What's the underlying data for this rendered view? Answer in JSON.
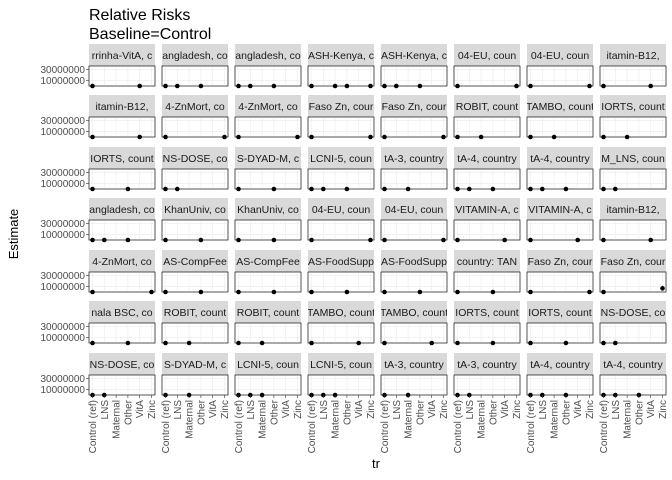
{
  "chart_data": {
    "type": "scatter",
    "title_lines": [
      "Relative Risks",
      "Baseline=Control"
    ],
    "xlabel": "tr",
    "ylabel": "Estimate",
    "categories": [
      "Control (ref)",
      "LNS",
      "Maternal",
      "Other",
      "VitA",
      "Zinc"
    ],
    "yticks": [
      10000000,
      30000000
    ],
    "ytick_labels": [
      "10000000",
      "30000000"
    ],
    "ylim": [
      0,
      36000000
    ],
    "grid": true,
    "legend": "none",
    "point_color": "#000000",
    "panel_bg": "#ffffff",
    "grid_color": "#ebebeb",
    "strip_bg": "#d9d9d9",
    "ncol": 8,
    "nrow": 7,
    "panels": [
      {
        "label": "rrinha-VitA, c",
        "points": [
          {
            "x": "Control (ref)",
            "y": 1
          },
          {
            "x": "VitA",
            "y": 1
          }
        ]
      },
      {
        "label": "angladesh, co",
        "points": [
          {
            "x": "Control (ref)",
            "y": 1
          },
          {
            "x": "LNS",
            "y": 1
          },
          {
            "x": "Other",
            "y": 1
          }
        ]
      },
      {
        "label": "angladesh, co",
        "points": [
          {
            "x": "Control (ref)",
            "y": 1
          },
          {
            "x": "LNS",
            "y": 1
          },
          {
            "x": "Other",
            "y": 1
          }
        ]
      },
      {
        "label": "ASH-Kenya, c",
        "points": [
          {
            "x": "Control (ref)",
            "y": 1
          },
          {
            "x": "Maternal",
            "y": 1
          },
          {
            "x": "Other",
            "y": 1
          },
          {
            "x": "Zinc",
            "y": 1
          }
        ]
      },
      {
        "label": "ASH-Kenya, c",
        "points": [
          {
            "x": "Control (ref)",
            "y": 1
          },
          {
            "x": "LNS",
            "y": 1
          },
          {
            "x": "Other",
            "y": 1
          }
        ]
      },
      {
        "label": "04-EU, coun",
        "points": [
          {
            "x": "Control (ref)",
            "y": 1
          },
          {
            "x": "Zinc",
            "y": 1
          }
        ]
      },
      {
        "label": "04-EU, coun",
        "points": [
          {
            "x": "Control (ref)",
            "y": 1
          },
          {
            "x": "Zinc",
            "y": 1
          }
        ]
      },
      {
        "label": "itamin-B12,",
        "points": [
          {
            "x": "Control (ref)",
            "y": 1
          },
          {
            "x": "VitA",
            "y": 1
          }
        ]
      },
      {
        "label": "itamin-B12,",
        "points": [
          {
            "x": "Control (ref)",
            "y": 1
          },
          {
            "x": "VitA",
            "y": 1
          }
        ]
      },
      {
        "label": "4-ZnMort, co",
        "points": [
          {
            "x": "Control (ref)",
            "y": 1
          },
          {
            "x": "Zinc",
            "y": 1
          }
        ]
      },
      {
        "label": "4-ZnMort, co",
        "points": [
          {
            "x": "Control (ref)",
            "y": 1
          },
          {
            "x": "Zinc",
            "y": 1
          }
        ]
      },
      {
        "label": "Faso Zn, cour",
        "points": [
          {
            "x": "Control (ref)",
            "y": 1
          },
          {
            "x": "Zinc",
            "y": 1
          }
        ]
      },
      {
        "label": "Faso Zn, cour",
        "points": [
          {
            "x": "Control (ref)",
            "y": 1
          },
          {
            "x": "Zinc",
            "y": 1
          }
        ]
      },
      {
        "label": "ROBIT, count",
        "points": [
          {
            "x": "Control (ref)",
            "y": 1
          },
          {
            "x": "Maternal",
            "y": 1
          }
        ]
      },
      {
        "label": "TAMBO, count",
        "points": [
          {
            "x": "Control (ref)",
            "y": 1
          },
          {
            "x": "Maternal",
            "y": 1
          }
        ]
      },
      {
        "label": "IORTS, count",
        "points": [
          {
            "x": "Control (ref)",
            "y": 1
          },
          {
            "x": "Maternal",
            "y": 1
          }
        ]
      },
      {
        "label": "IORTS, count",
        "points": [
          {
            "x": "Control (ref)",
            "y": 1
          },
          {
            "x": "Other",
            "y": 1
          }
        ]
      },
      {
        "label": "NS-DOSE, co",
        "points": [
          {
            "x": "Control (ref)",
            "y": 1
          },
          {
            "x": "LNS",
            "y": 1
          }
        ]
      },
      {
        "label": "S-DYAD-M, c",
        "points": [
          {
            "x": "Control (ref)",
            "y": 1
          },
          {
            "x": "Other",
            "y": 1
          }
        ]
      },
      {
        "label": "LCNI-5, coun",
        "points": [
          {
            "x": "Control (ref)",
            "y": 1
          },
          {
            "x": "LNS",
            "y": 1
          },
          {
            "x": "Other",
            "y": 1
          }
        ]
      },
      {
        "label": "tA-3, country",
        "points": [
          {
            "x": "Control (ref)",
            "y": 1
          },
          {
            "x": "Maternal",
            "y": 1
          }
        ]
      },
      {
        "label": "tA-4, country",
        "points": [
          {
            "x": "Control (ref)",
            "y": 1
          },
          {
            "x": "LNS",
            "y": 1
          },
          {
            "x": "Other",
            "y": 1
          }
        ]
      },
      {
        "label": "tA-4, country",
        "points": [
          {
            "x": "Control (ref)",
            "y": 1
          },
          {
            "x": "LNS",
            "y": 1
          },
          {
            "x": "Other",
            "y": 1
          }
        ]
      },
      {
        "label": "M_LNS, coun",
        "points": [
          {
            "x": "Control (ref)",
            "y": 1
          },
          {
            "x": "LNS",
            "y": 1
          }
        ]
      },
      {
        "label": "angladesh, co",
        "points": [
          {
            "x": "Control (ref)",
            "y": 1
          },
          {
            "x": "LNS",
            "y": 1
          },
          {
            "x": "Other",
            "y": 1
          }
        ]
      },
      {
        "label": "KhanUniv, co",
        "points": [
          {
            "x": "Control (ref)",
            "y": 1
          },
          {
            "x": "Other",
            "y": 1
          }
        ]
      },
      {
        "label": "KhanUniv, co",
        "points": [
          {
            "x": "Control (ref)",
            "y": 1
          },
          {
            "x": "Other",
            "y": 1
          }
        ]
      },
      {
        "label": "04-EU, coun",
        "points": [
          {
            "x": "Control (ref)",
            "y": 1
          },
          {
            "x": "Zinc",
            "y": 1
          }
        ]
      },
      {
        "label": "04-EU, coun",
        "points": [
          {
            "x": "Control (ref)",
            "y": 1
          },
          {
            "x": "Zinc",
            "y": 1
          }
        ]
      },
      {
        "label": "VITAMIN-A, c",
        "points": [
          {
            "x": "Control (ref)",
            "y": 1
          },
          {
            "x": "VitA",
            "y": 1
          }
        ]
      },
      {
        "label": "VITAMIN-A, c",
        "points": [
          {
            "x": "Control (ref)",
            "y": 1
          },
          {
            "x": "VitA",
            "y": 1
          }
        ]
      },
      {
        "label": "itamin-B12,",
        "points": [
          {
            "x": "Control (ref)",
            "y": 1
          },
          {
            "x": "VitA",
            "y": 1
          }
        ]
      },
      {
        "label": "4-ZnMort, co",
        "points": [
          {
            "x": "Control (ref)",
            "y": 1
          },
          {
            "x": "Zinc",
            "y": 1
          }
        ]
      },
      {
        "label": "AS-CompFee",
        "points": [
          {
            "x": "Control (ref)",
            "y": 1
          },
          {
            "x": "Other",
            "y": 1
          }
        ]
      },
      {
        "label": "AS-CompFee",
        "points": [
          {
            "x": "Control (ref)",
            "y": 1
          },
          {
            "x": "Other",
            "y": 1
          }
        ]
      },
      {
        "label": "AS-FoodSupp",
        "points": [
          {
            "x": "Control (ref)",
            "y": 1
          },
          {
            "x": "Other",
            "y": 1
          }
        ]
      },
      {
        "label": "AS-FoodSupp",
        "points": [
          {
            "x": "Control (ref)",
            "y": 1
          },
          {
            "x": "Other",
            "y": 1
          }
        ]
      },
      {
        "label": "country: TAN",
        "points": [
          {
            "x": "Control (ref)",
            "y": 1
          },
          {
            "x": "Other",
            "y": 1
          }
        ]
      },
      {
        "label": "Faso Zn, cour",
        "points": [
          {
            "x": "Control (ref)",
            "y": 1
          },
          {
            "x": "Zinc",
            "y": 1
          }
        ]
      },
      {
        "label": "Faso Zn, cour",
        "points": [
          {
            "x": "Control (ref)",
            "y": 1
          },
          {
            "x": "Zinc",
            "y": 6500000,
            "lo": 4000000,
            "hi": 11000000
          }
        ]
      },
      {
        "label": "nala BSC, co",
        "points": [
          {
            "x": "Control (ref)",
            "y": 1
          },
          {
            "x": "Other",
            "y": 1
          }
        ]
      },
      {
        "label": "ROBIT, count",
        "points": [
          {
            "x": "Control (ref)",
            "y": 1
          },
          {
            "x": "Maternal",
            "y": 1
          }
        ]
      },
      {
        "label": "ROBIT, count",
        "points": [
          {
            "x": "Control (ref)",
            "y": 1
          },
          {
            "x": "Maternal",
            "y": 1
          }
        ]
      },
      {
        "label": "TAMBO, count",
        "points": [
          {
            "x": "Control (ref)",
            "y": 1
          },
          {
            "x": "VitA",
            "y": 1
          }
        ]
      },
      {
        "label": "TAMBO, count",
        "points": [
          {
            "x": "Control (ref)",
            "y": 1
          },
          {
            "x": "VitA",
            "y": 1
          }
        ]
      },
      {
        "label": "IORTS, count",
        "points": [
          {
            "x": "Control (ref)",
            "y": 1
          },
          {
            "x": "Other",
            "y": 1
          }
        ]
      },
      {
        "label": "IORTS, count",
        "points": [
          {
            "x": "Control (ref)",
            "y": 1
          },
          {
            "x": "Other",
            "y": 1
          }
        ]
      },
      {
        "label": "NS-DOSE, co",
        "points": [
          {
            "x": "Control (ref)",
            "y": 1
          },
          {
            "x": "LNS",
            "y": 1
          }
        ]
      },
      {
        "label": "NS-DOSE, co",
        "points": [
          {
            "x": "Control (ref)",
            "y": 1
          },
          {
            "x": "LNS",
            "y": 1
          }
        ]
      },
      {
        "label": "S-DYAD-M, c",
        "points": [
          {
            "x": "Control (ref)",
            "y": 1
          },
          {
            "x": "Maternal",
            "y": 1
          }
        ]
      },
      {
        "label": "LCNI-5, coun",
        "points": [
          {
            "x": "Control (ref)",
            "y": 1
          },
          {
            "x": "LNS",
            "y": 1
          },
          {
            "x": "Maternal",
            "y": 1
          }
        ]
      },
      {
        "label": "LCNI-5, coun",
        "points": [
          {
            "x": "Control (ref)",
            "y": 1
          },
          {
            "x": "LNS",
            "y": 1
          },
          {
            "x": "Maternal",
            "y": 1
          }
        ]
      },
      {
        "label": "tA-3, country",
        "points": [
          {
            "x": "Control (ref)",
            "y": 1
          },
          {
            "x": "Maternal",
            "y": 1
          }
        ]
      },
      {
        "label": "tA-3, country",
        "points": [
          {
            "x": "Control (ref)",
            "y": 1
          },
          {
            "x": "LNS",
            "y": 1
          }
        ]
      },
      {
        "label": "tA-4, country",
        "points": [
          {
            "x": "Control (ref)",
            "y": 1
          },
          {
            "x": "LNS",
            "y": 1
          },
          {
            "x": "Other",
            "y": 1
          }
        ]
      },
      {
        "label": "tA-4, country",
        "points": [
          {
            "x": "Control (ref)",
            "y": 1
          },
          {
            "x": "LNS",
            "y": 1
          },
          {
            "x": "Other",
            "y": 1
          }
        ]
      }
    ]
  }
}
